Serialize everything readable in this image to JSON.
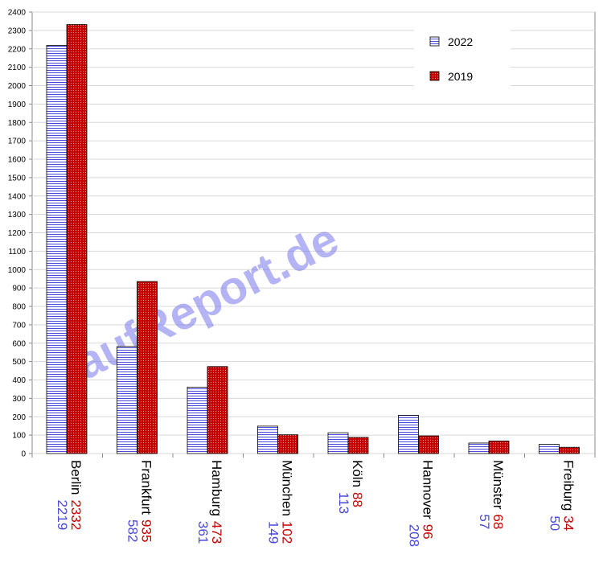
{
  "chart_data": {
    "type": "bar",
    "categories": [
      "Berlin",
      "Frankfurt",
      "Hamburg",
      "München",
      "Köln",
      "Hannover",
      "Münster",
      "Freiburg"
    ],
    "series": [
      {
        "name": "2022",
        "color": "#4a4ad8",
        "values": [
          2219,
          582,
          361,
          149,
          113,
          208,
          57,
          50
        ]
      },
      {
        "name": "2019",
        "color": "#c40000",
        "values": [
          2332,
          935,
          473,
          102,
          88,
          96,
          68,
          34
        ]
      }
    ],
    "ylim": [
      0,
      2400
    ],
    "yticks": [
      0,
      100,
      200,
      300,
      400,
      500,
      600,
      700,
      800,
      900,
      1000,
      1100,
      1200,
      1300,
      1400,
      1500,
      1600,
      1700,
      1800,
      1900,
      2000,
      2100,
      2200,
      2300,
      2400
    ],
    "grid": true,
    "legend": "top-right",
    "watermark": "LaufReport.de"
  }
}
